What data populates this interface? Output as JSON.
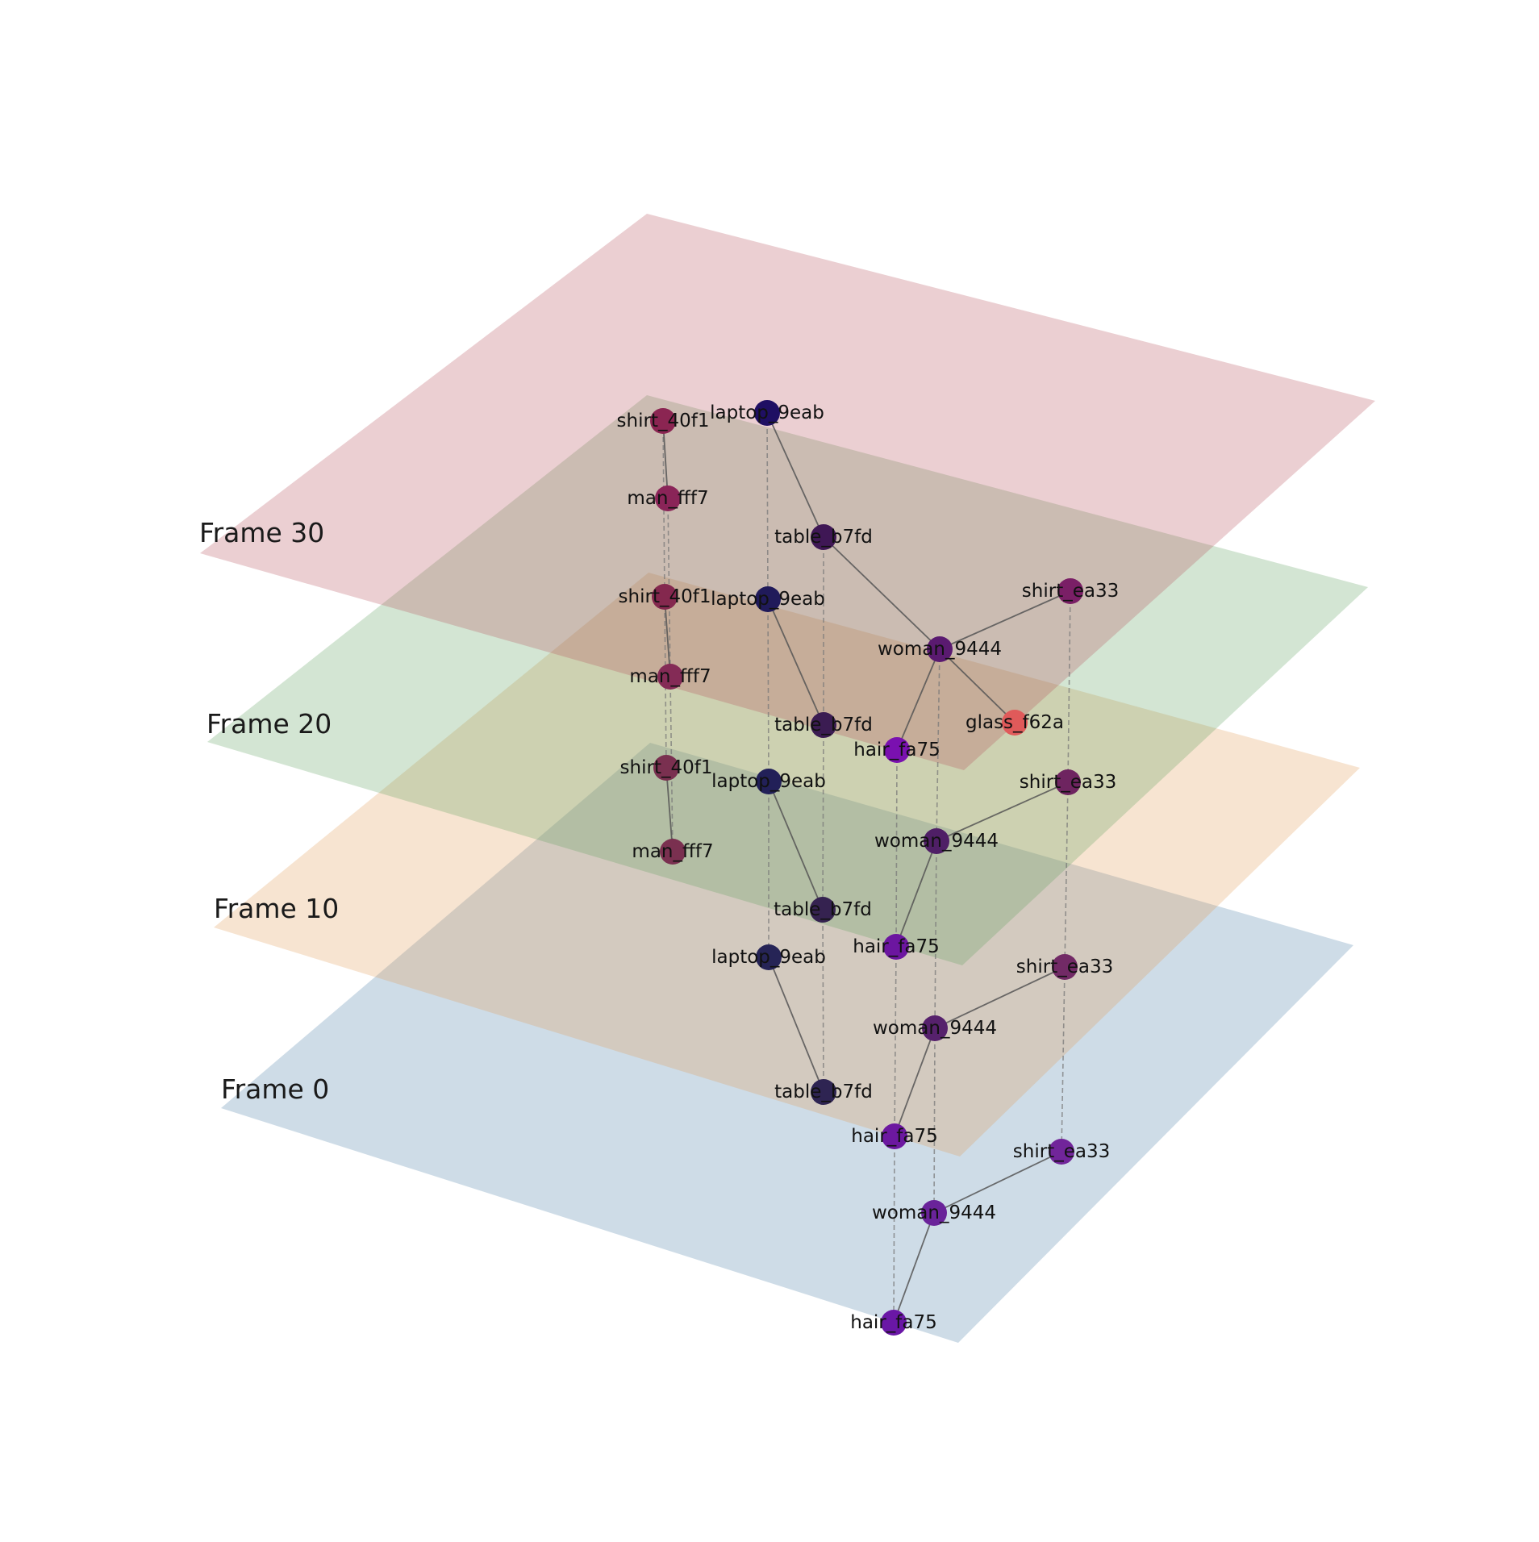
{
  "colors": {
    "frame_30": "#b44d5a",
    "frame_20": "#5c9e5c",
    "frame_10": "#e29a56",
    "frame_0": "#4a7fa8"
  },
  "frames": [
    {
      "key": "frame_30",
      "label": "Frame 30",
      "nodes": [
        {
          "id": "shirt_40f1",
          "label": "shirt_40f1",
          "color": "#8b2552"
        },
        {
          "id": "laptop_9eab",
          "label": "laptop_9eab",
          "color": "#1f0f63"
        },
        {
          "id": "man_fff7",
          "label": "man_fff7",
          "color": "#8a2458"
        },
        {
          "id": "table_b7fd",
          "label": "table_b7fd",
          "color": "#3f1755"
        },
        {
          "id": "shirt_ea33",
          "label": "shirt_ea33",
          "color": "#7a1f66"
        },
        {
          "id": "woman_9444",
          "label": "woman_9444",
          "color": "#5a1a70"
        },
        {
          "id": "glass_f62a",
          "label": "glass_f62a",
          "color": "#e05a5a"
        },
        {
          "id": "hair_fa75",
          "label": "hair_fa75",
          "color": "#7a10b0"
        }
      ],
      "edges": [
        [
          "shirt_40f1",
          "man_fff7"
        ],
        [
          "laptop_9eab",
          "table_b7fd"
        ],
        [
          "table_b7fd",
          "woman_9444"
        ],
        [
          "woman_9444",
          "shirt_ea33"
        ],
        [
          "woman_9444",
          "glass_f62a"
        ],
        [
          "woman_9444",
          "hair_fa75"
        ]
      ]
    },
    {
      "key": "frame_20",
      "label": "Frame 20",
      "nodes": [
        {
          "id": "shirt_40f1",
          "label": "shirt_40f1",
          "color": "#84284e"
        },
        {
          "id": "laptop_9eab",
          "label": "laptop_9eab",
          "color": "#201a5a"
        },
        {
          "id": "man_fff7",
          "label": "man_fff7",
          "color": "#842b56"
        },
        {
          "id": "table_b7fd",
          "label": "table_b7fd",
          "color": "#3b1c52"
        },
        {
          "id": "shirt_ea33",
          "label": "shirt_ea33",
          "color": "#6e2460"
        },
        {
          "id": "woman_9444",
          "label": "woman_9444",
          "color": "#4f1f66"
        },
        {
          "id": "hair_fa75",
          "label": "hair_fa75",
          "color": "#6c16a0"
        }
      ],
      "edges": [
        [
          "shirt_40f1",
          "man_fff7"
        ],
        [
          "laptop_9eab",
          "table_b7fd"
        ],
        [
          "woman_9444",
          "shirt_ea33"
        ],
        [
          "woman_9444",
          "hair_fa75"
        ]
      ]
    },
    {
      "key": "frame_10",
      "label": "Frame 10",
      "nodes": [
        {
          "id": "shirt_40f1",
          "label": "shirt_40f1",
          "color": "#7a3050"
        },
        {
          "id": "laptop_9eab",
          "label": "laptop_9eab",
          "color": "#222058"
        },
        {
          "id": "man_fff7",
          "label": "man_fff7",
          "color": "#7a3050"
        },
        {
          "id": "table_b7fd",
          "label": "table_b7fd",
          "color": "#352250"
        },
        {
          "id": "shirt_ea33",
          "label": "shirt_ea33",
          "color": "#722a66"
        },
        {
          "id": "woman_9444",
          "label": "woman_9444",
          "color": "#56216c"
        },
        {
          "id": "hair_fa75",
          "label": "hair_fa75",
          "color": "#6c18a0"
        }
      ],
      "edges": [
        [
          "shirt_40f1",
          "man_fff7"
        ],
        [
          "laptop_9eab",
          "table_b7fd"
        ],
        [
          "woman_9444",
          "shirt_ea33"
        ],
        [
          "woman_9444",
          "hair_fa75"
        ]
      ]
    },
    {
      "key": "frame_0",
      "label": "Frame 0",
      "nodes": [
        {
          "id": "laptop_9eab",
          "label": "laptop_9eab",
          "color": "#262456"
        },
        {
          "id": "table_b7fd",
          "label": "table_b7fd",
          "color": "#2e2452"
        },
        {
          "id": "shirt_ea33",
          "label": "shirt_ea33",
          "color": "#71259a"
        },
        {
          "id": "woman_9444",
          "label": "woman_9444",
          "color": "#6a239a"
        },
        {
          "id": "hair_fa75",
          "label": "hair_fa75",
          "color": "#6a17a6"
        }
      ],
      "edges": [
        [
          "laptop_9eab",
          "table_b7fd"
        ],
        [
          "woman_9444",
          "shirt_ea33"
        ],
        [
          "woman_9444",
          "hair_fa75"
        ]
      ]
    },
    {
      "key": "frame_0_lower",
      "label": "",
      "nodes": [
        {
          "id": "shirt_ea33",
          "label": "shirt_ea33",
          "color": "#6a1aa0"
        },
        {
          "id": "woman_9444",
          "label": "woman_9444",
          "color": "#3b1494"
        },
        {
          "id": "hair_fa75",
          "label": "hair_fa75",
          "color": "#6a0aa8"
        }
      ],
      "edges": [
        [
          "woman_9444",
          "shirt_ea33"
        ],
        [
          "woman_9444",
          "hair_fa75"
        ]
      ]
    }
  ]
}
